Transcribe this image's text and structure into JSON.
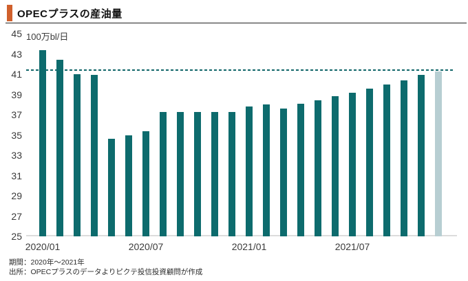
{
  "header": {
    "title": "OPECプラスの産油量",
    "accent_color": "#d0602c"
  },
  "chart_data": {
    "type": "bar",
    "title": "OPECプラスの産油量",
    "unit_label": "100万bl/日",
    "categories": [
      "2020/01",
      "2020/02",
      "2020/03",
      "2020/04",
      "2020/05",
      "2020/06",
      "2020/07",
      "2020/08",
      "2020/09",
      "2020/10",
      "2020/11",
      "2020/12",
      "2021/01",
      "2021/02",
      "2021/03",
      "2021/04",
      "2021/05",
      "2021/06",
      "2021/07",
      "2021/08",
      "2021/09",
      "2021/10",
      "2021/11",
      "2021/12"
    ],
    "values": [
      43.4,
      42.4,
      41.0,
      40.9,
      34.6,
      35.0,
      35.4,
      37.3,
      37.3,
      37.3,
      37.3,
      37.3,
      37.8,
      38.0,
      37.6,
      38.1,
      38.4,
      38.8,
      39.2,
      39.6,
      40.0,
      40.4,
      40.9,
      41.3
    ],
    "ylim": [
      25,
      45
    ],
    "yticks": [
      45,
      43,
      41,
      39,
      37,
      35,
      33,
      31,
      29,
      27,
      25
    ],
    "xtick_labels": [
      {
        "index": 0,
        "label": "2020/01"
      },
      {
        "index": 6,
        "label": "2020/07"
      },
      {
        "index": 12,
        "label": "2021/01"
      },
      {
        "index": 18,
        "label": "2021/07"
      }
    ],
    "bar_color": "#0d6b6d",
    "last_bar_color": "#b7ced2",
    "dashed_line": {
      "value": 41.5,
      "color": "#0f6568"
    },
    "grid": false,
    "legend": false
  },
  "footer": {
    "period": "期間：2020年～2021年",
    "source": "出所：OPECプラスのデータよりピクテ投信投資顧問が作成"
  }
}
